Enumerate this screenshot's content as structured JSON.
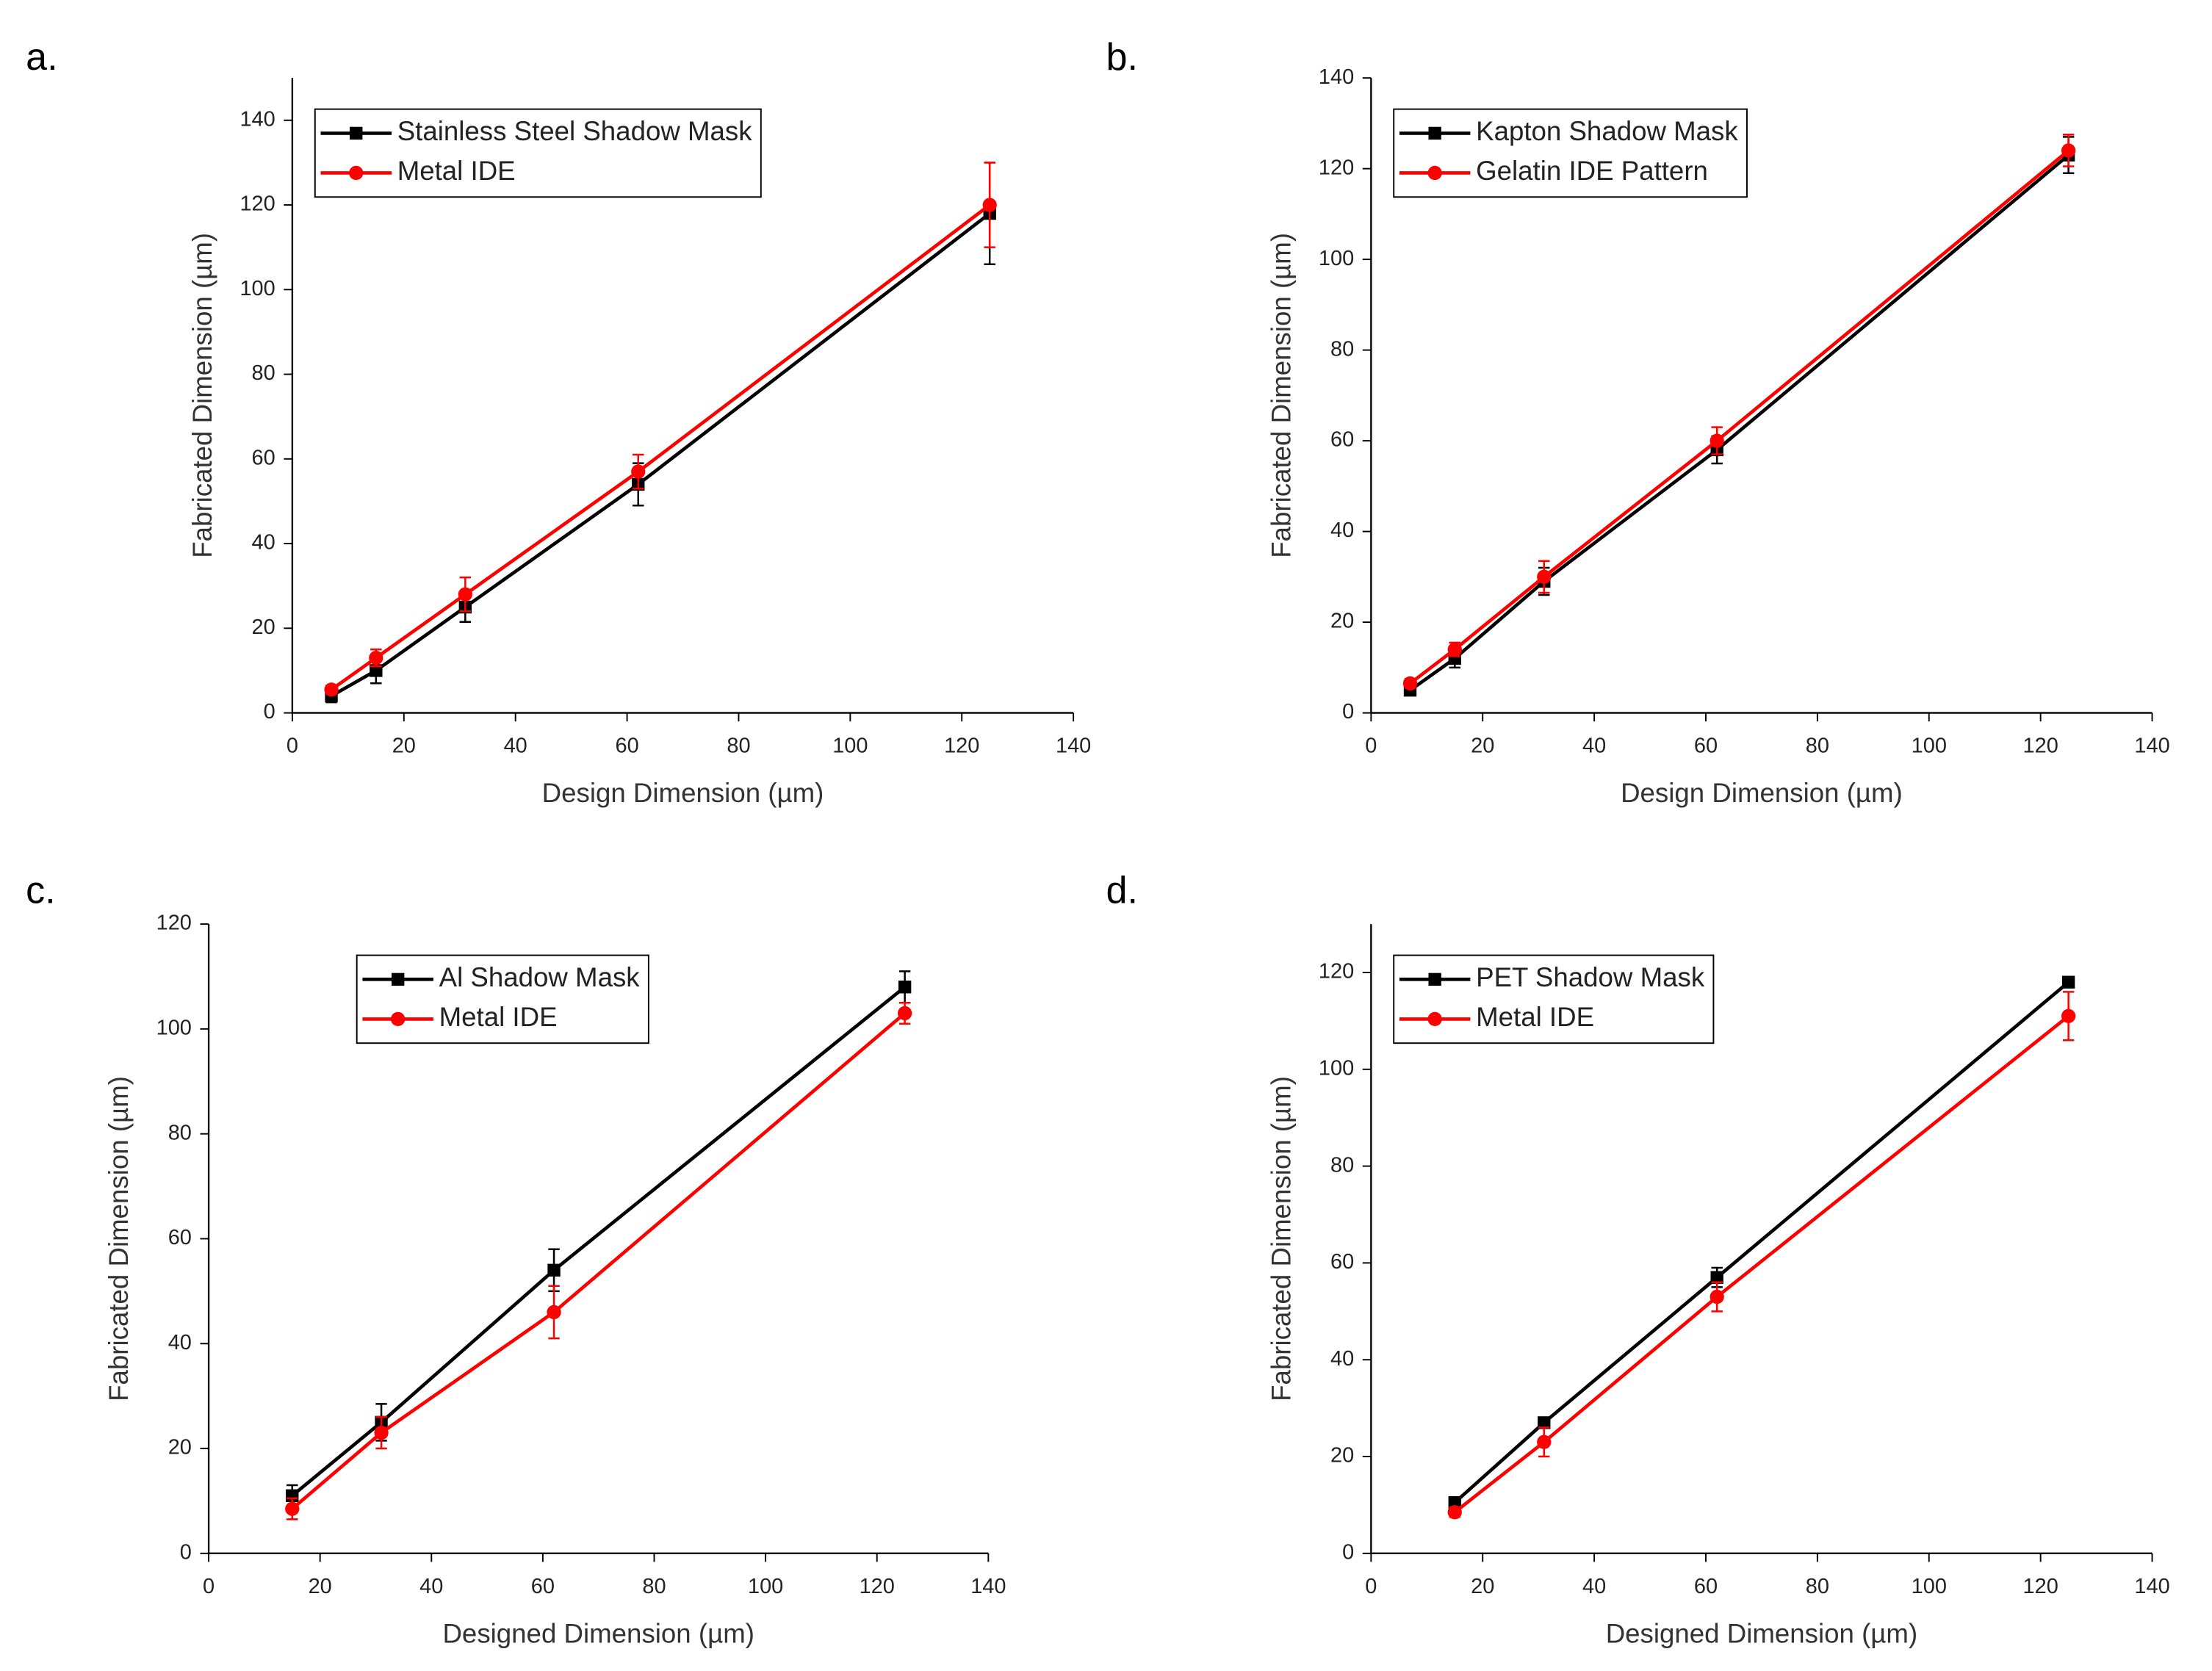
{
  "chart_data": [
    {
      "type": "line",
      "panel_label": "a.",
      "xlabel": "Design Dimension (µm)",
      "ylabel": "Fabricated Dimension (µm)",
      "x": [
        7,
        15,
        31,
        62,
        125
      ],
      "xlim": [
        0,
        140
      ],
      "xticks": [
        0,
        20,
        40,
        60,
        80,
        100,
        120,
        140
      ],
      "ylim": [
        0,
        150
      ],
      "yticks": [
        0,
        20,
        40,
        60,
        80,
        100,
        120,
        140
      ],
      "legend": "upper left",
      "series": [
        {
          "name": "Stainless Steel Shadow Mask",
          "color": "#000000",
          "marker": "square",
          "values": [
            4,
            10,
            25,
            54,
            118
          ],
          "errors": [
            1.5,
            3,
            3.5,
            5,
            12
          ]
        },
        {
          "name": "Metal IDE",
          "color": "#ff0000",
          "marker": "circle",
          "values": [
            5.5,
            13,
            28,
            57,
            120
          ],
          "errors": [
            1,
            2,
            4,
            4,
            10
          ]
        }
      ]
    },
    {
      "type": "line",
      "panel_label": "b.",
      "xlabel": "Design Dimension (µm)",
      "ylabel": "Fabricated Dimension (µm)",
      "x": [
        7,
        15,
        31,
        62,
        125
      ],
      "xlim": [
        0,
        140
      ],
      "xticks": [
        0,
        20,
        40,
        60,
        80,
        100,
        120,
        140
      ],
      "ylim": [
        0,
        140
      ],
      "yticks": [
        0,
        20,
        40,
        60,
        80,
        100,
        120,
        140
      ],
      "legend": "upper left",
      "series": [
        {
          "name": "Kapton Shadow Mask",
          "color": "#000000",
          "marker": "square",
          "values": [
            5,
            12,
            29,
            58,
            123
          ],
          "errors": [
            1,
            2,
            3,
            3,
            4
          ]
        },
        {
          "name": "Gelatin IDE Pattern",
          "color": "#ff0000",
          "marker": "circle",
          "values": [
            6.5,
            14,
            30,
            60,
            124
          ],
          "errors": [
            1,
            1.5,
            3.5,
            3,
            3.5
          ]
        }
      ]
    },
    {
      "type": "line",
      "panel_label": "c.",
      "xlabel": "Designed Dimension (µm)",
      "ylabel": "Fabricated Dimension (µm)",
      "x": [
        15,
        31,
        62,
        125
      ],
      "xlim": [
        0,
        140
      ],
      "xticks": [
        0,
        20,
        40,
        60,
        80,
        100,
        120,
        140
      ],
      "ylim": [
        0,
        120
      ],
      "yticks": [
        0,
        20,
        40,
        60,
        80,
        100,
        120
      ],
      "legend": "upper center",
      "series": [
        {
          "name": "Al Shadow Mask",
          "color": "#000000",
          "marker": "square",
          "values": [
            11,
            25,
            54,
            108
          ],
          "errors": [
            2,
            3.5,
            4,
            3
          ]
        },
        {
          "name": "Metal IDE",
          "color": "#ff0000",
          "marker": "circle",
          "values": [
            8.5,
            23,
            46,
            103
          ],
          "errors": [
            2,
            3,
            5,
            2
          ]
        }
      ]
    },
    {
      "type": "line",
      "panel_label": "d.",
      "xlabel": "Designed Dimension (µm)",
      "ylabel": "Fabricated Dimension (µm)",
      "x": [
        15,
        31,
        62,
        125
      ],
      "xlim": [
        0,
        140
      ],
      "xticks": [
        0,
        20,
        40,
        60,
        80,
        100,
        120,
        140
      ],
      "ylim": [
        0,
        130
      ],
      "yticks": [
        0,
        20,
        40,
        60,
        80,
        100,
        120
      ],
      "legend": "upper left",
      "series": [
        {
          "name": "PET Shadow Mask",
          "color": "#000000",
          "marker": "square",
          "values": [
            10.5,
            27,
            57,
            118
          ],
          "errors": [
            1,
            1,
            2,
            1
          ]
        },
        {
          "name": "Metal IDE",
          "color": "#ff0000",
          "marker": "circle",
          "values": [
            8.5,
            23,
            53,
            111
          ],
          "errors": [
            1,
            3,
            3,
            5
          ]
        }
      ]
    }
  ]
}
